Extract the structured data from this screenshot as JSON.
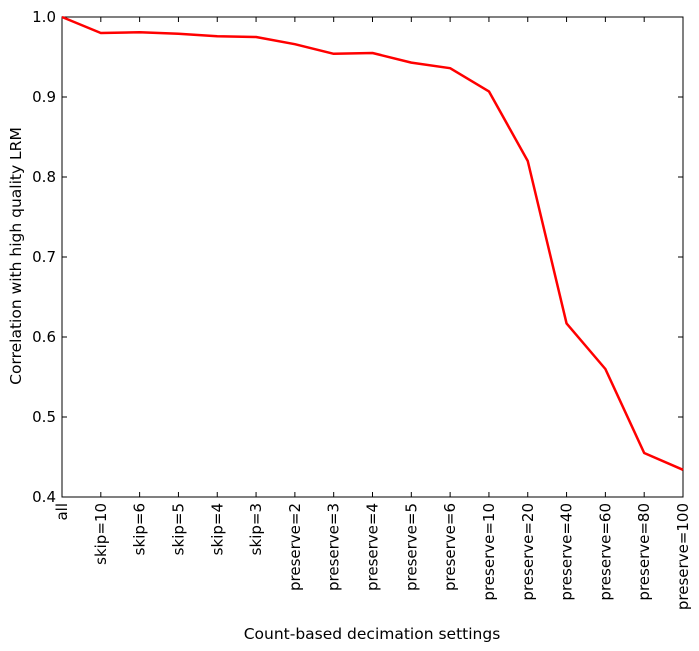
{
  "chart_data": {
    "type": "line",
    "title": "",
    "xlabel": "Count-based decimation settings",
    "ylabel": "Correlation with high quality LRM",
    "categories": [
      "all",
      "skip=10",
      "skip=6",
      "skip=5",
      "skip=4",
      "skip=3",
      "preserve=2",
      "preserve=3",
      "preserve=4",
      "preserve=5",
      "preserve=6",
      "preserve=10",
      "preserve=20",
      "preserve=40",
      "preserve=60",
      "preserve=80",
      "preserve=100"
    ],
    "series": [
      {
        "values": [
          1.0,
          0.98,
          0.981,
          0.979,
          0.976,
          0.975,
          0.966,
          0.954,
          0.955,
          0.943,
          0.936,
          0.907,
          0.82,
          0.617,
          0.56,
          0.455,
          0.434
        ],
        "color": "#ff0000"
      }
    ],
    "ylim": [
      0.4,
      1.0
    ],
    "yticks": [
      "0.4",
      "0.5",
      "0.6",
      "0.7",
      "0.8",
      "0.9",
      "1.0"
    ],
    "grid": false,
    "legend": "none"
  }
}
